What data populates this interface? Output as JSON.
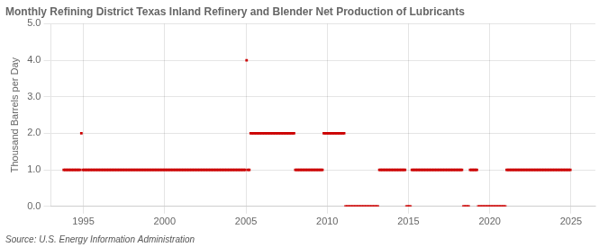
{
  "chart_data": {
    "type": "scatter",
    "title": "Monthly Refining District Texas Inland Refinery and Blender Net Production of Lubricants",
    "ylabel": "Thousand Barrels per Day",
    "annotations": [
      "Source: U.S. Energy Information Administration"
    ],
    "color": "#cc0000",
    "marker": "square",
    "grid": true,
    "xlim": [
      1993.0,
      2026.5
    ],
    "xticks": [
      1995,
      2000,
      2005,
      2010,
      2015,
      2020,
      2025
    ],
    "ylim": [
      0.0,
      5.0
    ],
    "yticks": [
      {
        "value": 0.0,
        "label": "0.0"
      },
      {
        "value": 1.0,
        "label": "1.0"
      },
      {
        "value": 2.0,
        "label": "2.0"
      },
      {
        "value": 3.0,
        "label": "3.0"
      },
      {
        "value": 4.0,
        "label": "4.0"
      },
      {
        "value": 5.0,
        "label": "5.0"
      }
    ],
    "x": [
      1993.791667,
      1993.875,
      1993.958333,
      1994.041667,
      1994.125,
      1994.208333,
      1994.291667,
      1994.375,
      1994.458333,
      1994.541667,
      1994.625,
      1994.708333,
      1994.791667,
      1994.875,
      1994.958333,
      1995.041667,
      1995.125,
      1995.208333,
      1995.291667,
      1995.375,
      1995.458333,
      1995.541667,
      1995.625,
      1995.708333,
      1995.791667,
      1995.875,
      1995.958333,
      1996.041667,
      1996.125,
      1996.208333,
      1996.291667,
      1996.375,
      1996.458333,
      1996.541667,
      1996.625,
      1996.708333,
      1996.791667,
      1996.875,
      1996.958333,
      1997.041667,
      1997.125,
      1997.208333,
      1997.291667,
      1997.375,
      1997.458333,
      1997.541667,
      1997.625,
      1997.708333,
      1997.791667,
      1997.875,
      1997.958333,
      1998.041667,
      1998.125,
      1998.208333,
      1998.291667,
      1998.375,
      1998.458333,
      1998.541667,
      1998.625,
      1998.708333,
      1998.791667,
      1998.875,
      1998.958333,
      1999.041667,
      1999.125,
      1999.208333,
      1999.291667,
      1999.375,
      1999.458333,
      1999.541667,
      1999.625,
      1999.708333,
      1999.791667,
      1999.875,
      1999.958333,
      2000.041667,
      2000.125,
      2000.208333,
      2000.291667,
      2000.375,
      2000.458333,
      2000.541667,
      2000.625,
      2000.708333,
      2000.791667,
      2000.875,
      2000.958333,
      2001.041667,
      2001.125,
      2001.208333,
      2001.291667,
      2001.375,
      2001.458333,
      2001.541667,
      2001.625,
      2001.708333,
      2001.791667,
      2001.875,
      2001.958333,
      2002.041667,
      2002.125,
      2002.208333,
      2002.291667,
      2002.375,
      2002.458333,
      2002.541667,
      2002.625,
      2002.708333,
      2002.791667,
      2002.875,
      2002.958333,
      2003.041667,
      2003.125,
      2003.208333,
      2003.291667,
      2003.375,
      2003.458333,
      2003.541667,
      2003.625,
      2003.708333,
      2003.791667,
      2003.875,
      2003.958333,
      2004.041667,
      2004.125,
      2004.208333,
      2004.291667,
      2004.375,
      2004.458333,
      2004.541667,
      2004.625,
      2004.708333,
      2004.791667,
      2004.875,
      2004.958333,
      2005.041667,
      2005.125,
      2005.208333,
      2005.291667,
      2005.375,
      2005.458333,
      2005.541667,
      2005.625,
      2005.708333,
      2005.791667,
      2005.875,
      2005.958333,
      2006.041667,
      2006.125,
      2006.208333,
      2006.291667,
      2006.375,
      2006.458333,
      2006.541667,
      2006.625,
      2006.708333,
      2006.791667,
      2006.875,
      2006.958333,
      2007.041667,
      2007.125,
      2007.208333,
      2007.291667,
      2007.375,
      2007.458333,
      2007.541667,
      2007.625,
      2007.708333,
      2007.791667,
      2007.875,
      2007.958333,
      2008.041667,
      2008.125,
      2008.208333,
      2008.291667,
      2008.375,
      2008.458333,
      2008.541667,
      2008.625,
      2008.708333,
      2008.791667,
      2008.875,
      2008.958333,
      2009.041667,
      2009.125,
      2009.208333,
      2009.291667,
      2009.375,
      2009.458333,
      2009.541667,
      2009.625,
      2009.708333,
      2009.791667,
      2009.875,
      2009.958333,
      2010.041667,
      2010.125,
      2010.208333,
      2010.291667,
      2010.375,
      2010.458333,
      2010.541667,
      2010.625,
      2010.708333,
      2010.791667,
      2010.875,
      2010.958333,
      2011.041667,
      2011.125,
      2011.208333,
      2011.291667,
      2011.375,
      2011.458333,
      2011.541667,
      2011.625,
      2011.708333,
      2011.791667,
      2011.875,
      2011.958333,
      2012.041667,
      2012.125,
      2012.208333,
      2012.291667,
      2012.375,
      2012.458333,
      2012.541667,
      2012.625,
      2012.708333,
      2012.791667,
      2012.875,
      2012.958333,
      2013.041667,
      2013.125,
      2013.208333,
      2013.291667,
      2013.375,
      2013.458333,
      2013.541667,
      2013.625,
      2013.708333,
      2013.791667,
      2013.875,
      2013.958333,
      2014.041667,
      2014.125,
      2014.208333,
      2014.291667,
      2014.375,
      2014.458333,
      2014.541667,
      2014.625,
      2014.708333,
      2014.791667,
      2014.875,
      2014.958333,
      2015.041667,
      2015.125,
      2015.208333,
      2015.291667,
      2015.375,
      2015.458333,
      2015.541667,
      2015.625,
      2015.708333,
      2015.791667,
      2015.875,
      2015.958333,
      2016.041667,
      2016.125,
      2016.208333,
      2016.291667,
      2016.375,
      2016.458333,
      2016.541667,
      2016.625,
      2016.708333,
      2016.791667,
      2016.875,
      2016.958333,
      2017.041667,
      2017.125,
      2017.208333,
      2017.291667,
      2017.375,
      2017.458333,
      2017.541667,
      2017.625,
      2017.708333,
      2017.791667,
      2017.875,
      2017.958333,
      2018.041667,
      2018.125,
      2018.208333,
      2018.291667,
      2018.375,
      2018.458333,
      2018.541667,
      2018.625,
      2018.708333,
      2018.791667,
      2018.875,
      2018.958333,
      2019.041667,
      2019.125,
      2019.208333,
      2019.291667,
      2019.375,
      2019.458333,
      2019.541667,
      2019.625,
      2019.708333,
      2019.791667,
      2019.875,
      2019.958333,
      2020.041667,
      2020.125,
      2020.208333,
      2020.291667,
      2020.375,
      2020.458333,
      2020.541667,
      2020.625,
      2020.708333,
      2020.791667,
      2020.875,
      2020.958333,
      2021.041667,
      2021.125,
      2021.208333,
      2021.291667,
      2021.375,
      2021.458333,
      2021.541667,
      2021.625,
      2021.708333,
      2021.791667,
      2021.875,
      2021.958333,
      2022.041667,
      2022.125,
      2022.208333,
      2022.291667,
      2022.375,
      2022.458333,
      2022.541667,
      2022.625,
      2022.708333,
      2022.791667,
      2022.875,
      2022.958333,
      2023.041667,
      2023.125,
      2023.208333,
      2023.291667,
      2023.375,
      2023.458333,
      2023.541667,
      2023.625,
      2023.708333,
      2023.791667,
      2023.875,
      2023.958333,
      2024.041667,
      2024.125,
      2024.208333,
      2024.291667,
      2024.375,
      2024.458333,
      2024.541667,
      2024.625,
      2024.708333,
      2024.791667,
      2024.875,
      2024.958333
    ],
    "values": [
      1,
      1,
      1,
      1,
      1,
      1,
      1,
      1,
      1,
      1,
      1,
      1,
      1,
      2,
      1,
      1,
      1,
      1,
      1,
      1,
      1,
      1,
      1,
      1,
      1,
      1,
      1,
      1,
      1,
      1,
      1,
      1,
      1,
      1,
      1,
      1,
      1,
      1,
      1,
      1,
      1,
      1,
      1,
      1,
      1,
      1,
      1,
      1,
      1,
      1,
      1,
      1,
      1,
      1,
      1,
      1,
      1,
      1,
      1,
      1,
      1,
      1,
      1,
      1,
      1,
      1,
      1,
      1,
      1,
      1,
      1,
      1,
      1,
      1,
      1,
      1,
      1,
      1,
      1,
      1,
      1,
      1,
      1,
      1,
      1,
      1,
      1,
      1,
      1,
      1,
      1,
      1,
      1,
      1,
      1,
      1,
      1,
      1,
      1,
      1,
      1,
      1,
      1,
      1,
      1,
      1,
      1,
      1,
      1,
      1,
      1,
      1,
      1,
      1,
      1,
      1,
      1,
      1,
      1,
      1,
      1,
      1,
      1,
      1,
      1,
      1,
      1,
      1,
      1,
      1,
      1,
      1,
      1,
      1,
      1,
      4,
      1,
      1,
      2,
      2,
      2,
      2,
      2,
      2,
      2,
      2,
      2,
      2,
      2,
      2,
      2,
      2,
      2,
      2,
      2,
      2,
      2,
      2,
      2,
      2,
      2,
      2,
      2,
      2,
      2,
      2,
      2,
      2,
      2,
      2,
      2,
      1,
      1,
      1,
      1,
      1,
      1,
      1,
      1,
      1,
      1,
      1,
      1,
      1,
      1,
      1,
      1,
      1,
      1,
      1,
      1,
      1,
      2,
      2,
      2,
      2,
      2,
      2,
      2,
      2,
      2,
      2,
      2,
      2,
      2,
      2,
      2,
      2,
      0,
      0,
      0,
      0,
      0,
      0,
      0,
      0,
      0,
      0,
      0,
      0,
      0,
      0,
      0,
      0,
      0,
      0,
      0,
      0,
      0,
      0,
      0,
      0,
      0,
      1,
      1,
      1,
      1,
      1,
      1,
      1,
      1,
      1,
      1,
      1,
      1,
      1,
      1,
      1,
      1,
      1,
      1,
      1,
      1,
      0,
      0,
      0,
      0,
      1,
      1,
      1,
      1,
      1,
      1,
      1,
      1,
      1,
      1,
      1,
      1,
      1,
      1,
      1,
      1,
      1,
      1,
      1,
      1,
      1,
      1,
      1,
      1,
      1,
      1,
      1,
      1,
      1,
      1,
      1,
      1,
      1,
      1,
      1,
      1,
      1,
      1,
      0,
      0,
      0,
      0,
      0,
      1,
      1,
      1,
      1,
      1,
      1,
      0,
      0,
      0,
      0,
      0,
      0,
      0,
      0,
      0,
      0,
      0,
      0,
      0,
      0,
      0,
      0,
      0,
      0,
      0,
      0,
      0,
      1,
      1,
      1,
      1,
      1,
      1,
      1,
      1,
      1,
      1,
      1,
      1,
      1,
      1,
      1,
      1,
      1,
      1,
      1,
      1,
      1,
      1,
      1,
      1,
      1,
      1,
      1,
      1,
      1,
      1,
      1,
      1,
      1,
      1,
      1,
      1,
      1,
      1,
      1,
      1,
      1,
      1,
      1,
      1,
      1,
      1,
      1,
      1
    ]
  }
}
